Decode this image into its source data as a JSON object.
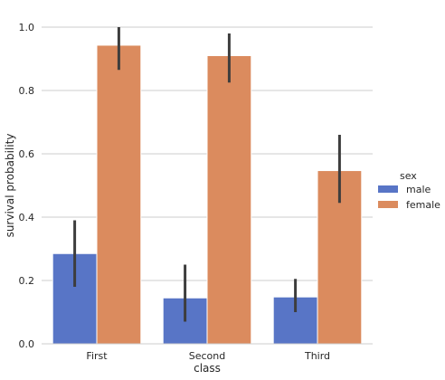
{
  "chart_data": {
    "type": "bar",
    "title": "",
    "xlabel": "class",
    "ylabel": "survival probability",
    "categories": [
      "First",
      "Second",
      "Third"
    ],
    "ylim": [
      0,
      1.0
    ],
    "yticks": [
      "0.0",
      "0.2",
      "0.4",
      "0.6",
      "0.8",
      "1.0"
    ],
    "grid": "horizontal",
    "legend": {
      "title": "sex",
      "placement": "right"
    },
    "series": [
      {
        "name": "male",
        "color": "#5875c6",
        "values": [
          0.285,
          0.145,
          0.148
        ],
        "error_low": [
          0.18,
          0.07,
          0.1
        ],
        "error_high": [
          0.39,
          0.25,
          0.205
        ]
      },
      {
        "name": "female",
        "color": "#db8b5e",
        "values": [
          0.943,
          0.91,
          0.547
        ],
        "error_low": [
          0.865,
          0.825,
          0.445
        ],
        "error_high": [
          1.0,
          0.98,
          0.66
        ]
      }
    ]
  }
}
